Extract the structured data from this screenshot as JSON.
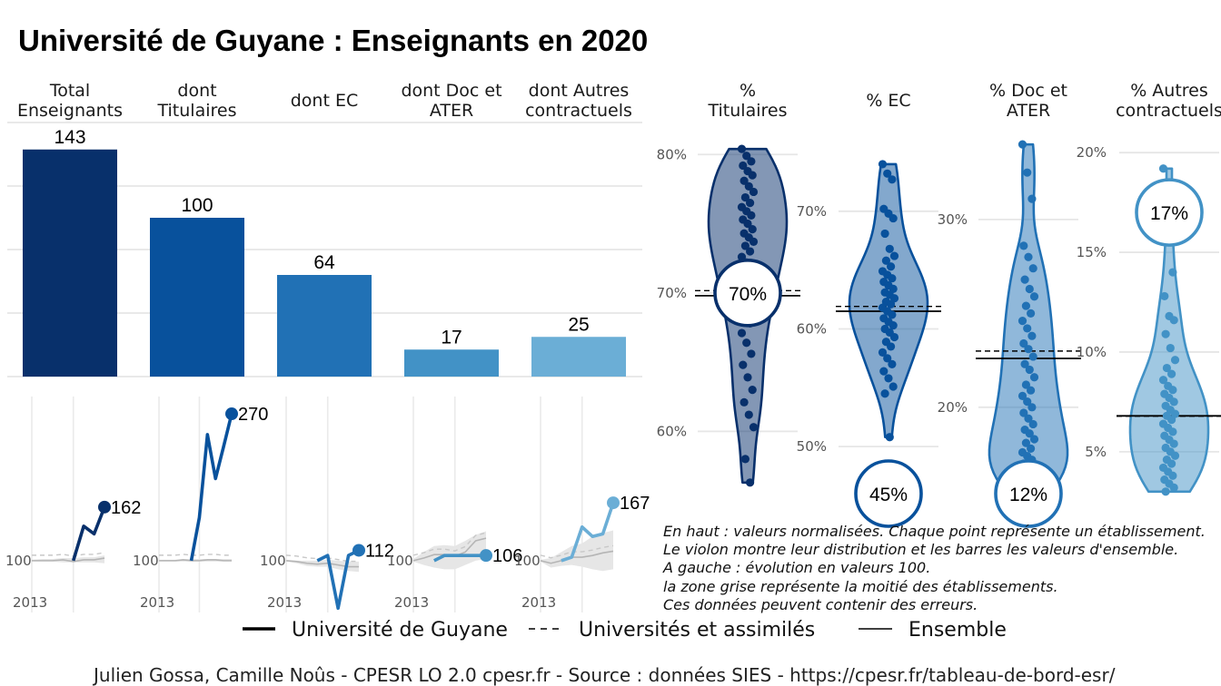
{
  "title": "Université de Guyane  :  Enseignants en 2020",
  "headers": {
    "bars": [
      [
        "Total",
        "Enseignants"
      ],
      [
        "dont",
        "Titulaires"
      ],
      [
        "dont EC"
      ],
      [
        "dont Doc et",
        "ATER"
      ],
      [
        "dont Autres",
        "contractuels"
      ]
    ],
    "violins": [
      [
        "%",
        "Titulaires"
      ],
      [
        "% EC"
      ],
      [
        "% Doc et",
        "ATER"
      ],
      [
        "% Autres",
        "contractuels"
      ]
    ]
  },
  "colors": [
    "#08306b",
    "#08519c",
    "#2171b5",
    "#4292c6",
    "#6baed6"
  ],
  "chart_data": [
    {
      "type": "bar",
      "categories": [
        "Total Enseignants",
        "dont Titulaires",
        "dont EC",
        "dont Doc et ATER",
        "dont Autres contractuels"
      ],
      "values": [
        143,
        100,
        64,
        17,
        25
      ],
      "ylim": [
        0,
        160
      ],
      "grid": true
    },
    {
      "type": "line",
      "base_label": "100",
      "x_label": "2013",
      "panels": [
        {
          "x": [
            2013,
            2014,
            2015,
            2016,
            2017,
            2018,
            2019,
            2020
          ],
          "guyane": [
            null,
            null,
            null,
            null,
            100,
            140,
            131,
            162
          ],
          "universites": [
            100,
            100,
            100,
            101,
            99,
            101,
            101,
            103
          ],
          "band": [
            [
              99,
              101
            ],
            [
              99,
              102
            ],
            [
              99,
              102
            ],
            [
              98,
              103
            ],
            [
              98,
              103
            ],
            [
              98,
              104
            ],
            [
              98,
              104
            ],
            [
              97,
              106
            ]
          ],
          "end_label": "162"
        },
        {
          "x": [
            2013,
            2014,
            2015,
            2016,
            2017,
            2018,
            2019,
            2020
          ],
          "guyane": [
            null,
            null,
            null,
            null,
            100,
            150,
            246,
            195,
            232,
            270
          ],
          "x_ext": [
            2013,
            2014,
            2015,
            2016,
            2017,
            2018,
            2019,
            2020,
            2021,
            2022
          ],
          "universites": [
            100,
            100,
            100,
            101,
            100,
            100,
            101,
            101,
            100,
            100
          ],
          "band": [
            [
              99,
              101
            ],
            [
              99,
              101
            ],
            [
              99,
              101
            ],
            [
              99,
              102
            ],
            [
              99,
              102
            ],
            [
              99,
              102
            ],
            [
              99,
              102
            ],
            [
              99,
              102
            ],
            [
              99,
              102
            ],
            [
              99,
              102
            ]
          ],
          "end_label": "270"
        },
        {
          "x": [
            2013,
            2014,
            2015,
            2016,
            2017,
            2018,
            2019,
            2020
          ],
          "guyane": [
            null,
            null,
            null,
            100,
            106,
            45,
            106,
            112
          ],
          "universites": [
            100,
            99,
            97,
            96,
            97,
            95,
            93,
            93
          ],
          "band": [
            [
              99,
              101
            ],
            [
              97,
              100
            ],
            [
              94,
              100
            ],
            [
              93,
              100
            ],
            [
              93,
              101
            ],
            [
              90,
              100
            ],
            [
              88,
              99
            ],
            [
              87,
              99
            ]
          ],
          "end_label": "112"
        },
        {
          "x": [
            2013,
            2014,
            2015,
            2016,
            2017,
            2018,
            2019,
            2020
          ],
          "guyane": [
            null,
            null,
            100,
            106,
            106,
            106,
            106,
            106
          ],
          "universites": [
            100,
            103,
            107,
            107,
            105,
            110,
            123,
            126
          ],
          "band": [
            [
              99,
              102
            ],
            [
              95,
              110
            ],
            [
              92,
              117
            ],
            [
              90,
              118
            ],
            [
              90,
              117
            ],
            [
              95,
              123
            ],
            [
              100,
              130
            ],
            [
              102,
              134
            ]
          ],
          "end_label": "106"
        },
        {
          "x": [
            2013,
            2014,
            2015,
            2016,
            2017,
            2018,
            2019,
            2020
          ],
          "guyane": [
            null,
            null,
            100,
            104,
            139,
            128,
            131,
            167
          ],
          "universites": [
            100,
            97,
            100,
            104,
            104,
            106,
            109,
            111
          ],
          "band": [
            [
              99,
              101
            ],
            [
              92,
              103
            ],
            [
              94,
              110
            ],
            [
              95,
              117
            ],
            [
              93,
              120
            ],
            [
              90,
              128
            ],
            [
              88,
              132
            ],
            [
              90,
              135
            ]
          ],
          "end_label": "167"
        }
      ]
    },
    {
      "type": "violin",
      "panels": [
        {
          "ticks": [
            "80%",
            "70%",
            "60%"
          ],
          "tick_values": [
            80,
            70,
            60
          ],
          "ylim": [
            55.5,
            81
          ],
          "value": 70,
          "value_label": "70%",
          "ensemble": 69.8,
          "universites": 69.9,
          "points": [
            80.4,
            79.9,
            79.5,
            79.2,
            78.8,
            78.5,
            78.1,
            77.7,
            77.3,
            76.9,
            76.5,
            76.2,
            75.9,
            75.6,
            75.3,
            75.0,
            74.6,
            74.3,
            74.0,
            73.7,
            73.4,
            73.0,
            72.6,
            72.2,
            71.8,
            71.4,
            71.0,
            70.5,
            70.0,
            69.5,
            69.0,
            68.5,
            67.8,
            67.1,
            66.4,
            65.6,
            64.8,
            63.9,
            63.0,
            62.1,
            61.2,
            60.3,
            58.0,
            56.3
          ]
        },
        {
          "ticks": [
            "70%",
            "60%",
            "50%"
          ],
          "tick_values": [
            70,
            60,
            50
          ],
          "ylim": [
            46,
            76
          ],
          "value": 45,
          "value_label": "45%",
          "ensemble": 61.5,
          "universites": 61.6,
          "points": [
            74.0,
            73.2,
            72.7,
            70.2,
            69.8,
            69.4,
            68.1,
            66.8,
            66.2,
            65.8,
            65.3,
            64.9,
            64.6,
            64.3,
            64.0,
            63.7,
            63.4,
            63.1,
            62.9,
            62.6,
            62.3,
            62.1,
            61.8,
            61.5,
            61.2,
            60.9,
            60.6,
            60.3,
            60.0,
            59.7,
            59.3,
            58.9,
            58.5,
            58.0,
            57.5,
            57.0,
            56.4,
            55.8,
            55.1,
            54.5,
            50.8
          ]
        },
        {
          "ticks": [
            "30%",
            "20%"
          ],
          "tick_values": [
            30,
            20
          ],
          "ylim": [
            15.4,
            34.2
          ],
          "value": 12,
          "value_label": "12%",
          "ensemble": 22.6,
          "universites": 22.8,
          "points": [
            34.0,
            32.5,
            31.1,
            28.6,
            28.0,
            27.4,
            26.8,
            26.3,
            25.9,
            25.4,
            25.0,
            24.6,
            24.2,
            23.8,
            23.4,
            23.1,
            22.7,
            22.3,
            22.0,
            21.6,
            21.2,
            20.9,
            20.6,
            20.3,
            20.0,
            19.7,
            19.4,
            19.1,
            18.8,
            18.6,
            18.3,
            18.1,
            17.8,
            17.6,
            17.4,
            17.2,
            17.0,
            16.8,
            16.6,
            16.4,
            16.2,
            16.0,
            15.8,
            15.6
          ]
        },
        {
          "ticks": [
            "20%",
            "15%",
            "10%",
            "5%"
          ],
          "tick_values": [
            20,
            15,
            10,
            5
          ],
          "ylim": [
            2.9,
            20.6
          ],
          "value": 17,
          "value_label": "17%",
          "ensemble": 6.8,
          "universites": 6.6,
          "points": [
            19.2,
            15.8,
            14.0,
            12.8,
            11.8,
            11.6,
            10.9,
            10.2,
            9.6,
            9.2,
            8.9,
            8.6,
            8.3,
            8.1,
            7.9,
            7.7,
            7.5,
            7.3,
            7.1,
            6.9,
            6.8,
            6.6,
            6.4,
            6.2,
            6.0,
            5.8,
            5.6,
            5.4,
            5.2,
            5.0,
            4.8,
            4.6,
            4.4,
            4.2,
            4.0,
            3.8,
            3.6,
            3.4,
            3.2,
            3.0
          ]
        }
      ]
    }
  ],
  "notes": [
    "En haut : valeurs normalisées. Chaque point représente un établissement.",
    "Le violon montre leur distribution et les barres les valeurs d'ensemble.",
    "A gauche : évolution en valeurs 100.",
    "la zone grise représente la moitié des établissements.",
    "Ces données peuvent contenir des erreurs."
  ],
  "legend": [
    "Université de Guyane",
    "Universités et assimilés",
    "Ensemble"
  ],
  "caption": "Julien Gossa, Camille Noûs - CPESR LO 2.0 cpesr.fr - Source : données SIES - https://cpesr.fr/tableau-de-bord-esr/"
}
